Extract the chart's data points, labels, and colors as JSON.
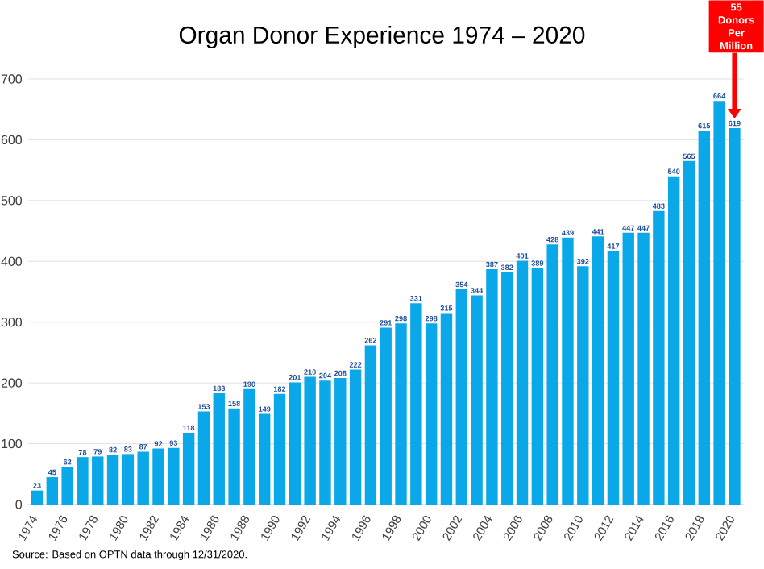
{
  "chart_data": {
    "type": "bar",
    "title": "Organ Donor Experience 1974 – 2020",
    "categories": [
      "1974",
      null,
      "1976",
      null,
      "1978",
      null,
      "1980",
      null,
      "1982",
      null,
      "1984",
      null,
      "1986",
      null,
      "1988",
      null,
      "1990",
      null,
      "1992",
      null,
      "1994",
      null,
      "1996",
      null,
      "1998",
      null,
      "2000",
      null,
      "2002",
      null,
      "2004",
      null,
      "2006",
      null,
      "2008",
      null,
      "2010",
      null,
      "2012",
      null,
      "2014",
      null,
      "2016",
      null,
      "2018",
      null,
      "2020"
    ],
    "values": [
      23,
      45,
      62,
      78,
      79,
      82,
      83,
      87,
      92,
      93,
      118,
      153,
      183,
      158,
      190,
      149,
      182,
      201,
      210,
      204,
      208,
      222,
      262,
      291,
      298,
      331,
      298,
      315,
      354,
      344,
      387,
      382,
      401,
      389,
      428,
      439,
      392,
      441,
      417,
      447,
      447,
      483,
      540,
      565,
      615,
      664,
      619
    ],
    "color": "#0aa8e8",
    "ylim": [
      0,
      700
    ],
    "yticks": [
      0,
      100,
      200,
      300,
      400,
      500,
      600,
      700
    ],
    "grid": "y",
    "data_labels": true,
    "annotations": [
      "55 Donors Per Million",
      "Source: Based on OPTN data through 12/31/2020."
    ]
  }
}
